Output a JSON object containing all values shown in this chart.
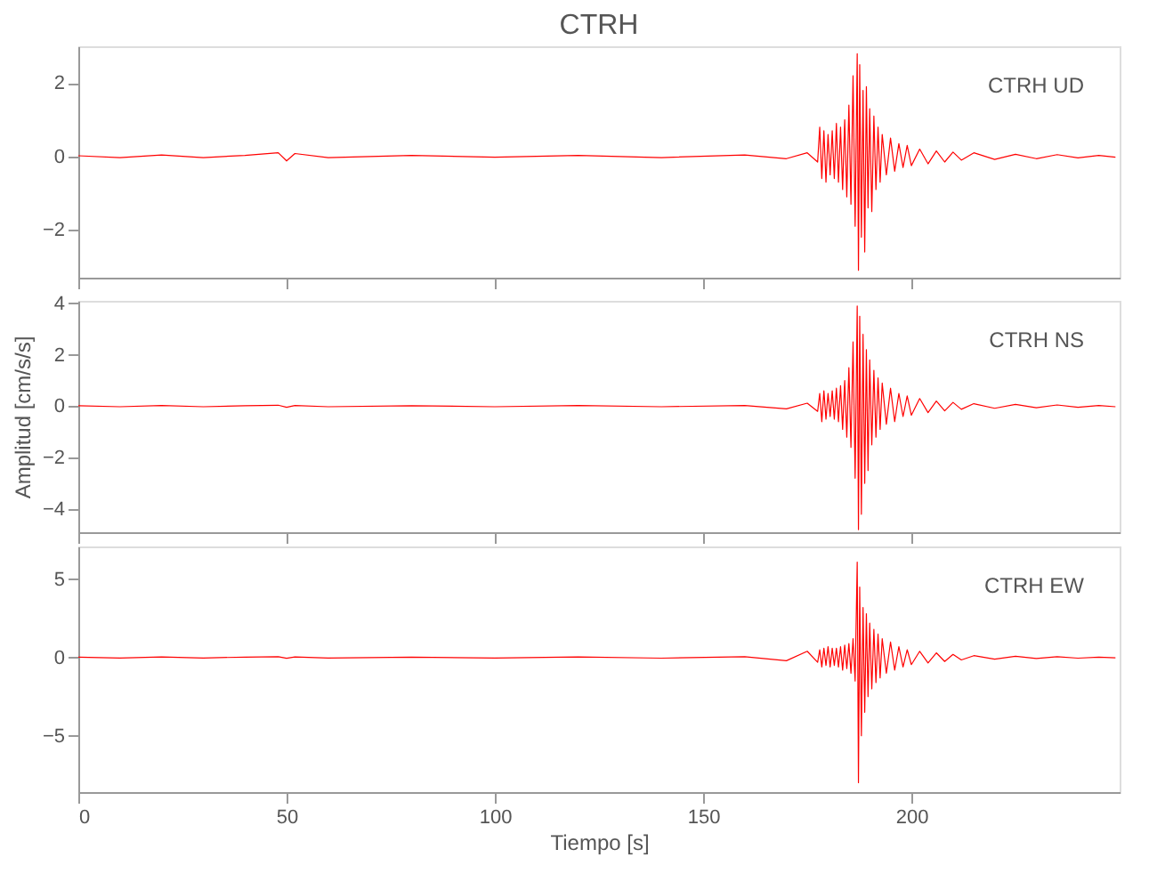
{
  "chart_data": [
    {
      "type": "line",
      "title": "CTRH",
      "annotations": [
        "CTRH UD"
      ],
      "xlim": [
        0,
        250
      ],
      "xticks": [
        0,
        50,
        100,
        150,
        200
      ],
      "ylim": [
        -3.3,
        3.0
      ],
      "yticks": [
        -2,
        0,
        2
      ],
      "tick_labels": "y",
      "grid": false,
      "series": [
        {
          "color": "#ff0000",
          "x": [
            0,
            10,
            20,
            30,
            40,
            48,
            50,
            52,
            60,
            80,
            100,
            120,
            140,
            160,
            170,
            175,
            177.5,
            178,
            178.5,
            179,
            179.5,
            180,
            180.5,
            181,
            181.5,
            182,
            182.5,
            183,
            183.5,
            184,
            184.5,
            185,
            185.5,
            186,
            186.5,
            187,
            187.3,
            187.6,
            188,
            188.4,
            188.8,
            189.2,
            189.6,
            190,
            190.5,
            191,
            191.5,
            192,
            192.5,
            193,
            194,
            195,
            196,
            197,
            198,
            199,
            200,
            202,
            204,
            206,
            208,
            210,
            212,
            215,
            220,
            225,
            230,
            235,
            240,
            245,
            249
          ],
          "values": [
            0.02,
            -0.03,
            0.04,
            -0.03,
            0.03,
            0.1,
            -0.12,
            0.08,
            -0.03,
            0.03,
            -0.02,
            0.03,
            -0.03,
            0.04,
            -0.06,
            0.1,
            -0.15,
            0.8,
            -0.6,
            0.7,
            -0.7,
            0.6,
            -0.5,
            0.7,
            -0.6,
            0.9,
            -0.7,
            0.8,
            -0.9,
            1.0,
            -1.1,
            1.4,
            -1.3,
            2.2,
            -1.9,
            2.8,
            -3.1,
            2.5,
            -2.2,
            1.8,
            -2.6,
            1.9,
            -1.4,
            1.3,
            -1.5,
            1.1,
            -0.9,
            0.8,
            -0.7,
            0.6,
            -0.5,
            0.5,
            -0.4,
            0.35,
            -0.3,
            0.3,
            -0.25,
            0.2,
            -0.2,
            0.15,
            -0.15,
            0.12,
            -0.1,
            0.1,
            -0.08,
            0.06,
            -0.06,
            0.05,
            -0.04,
            0.03,
            -0.02
          ]
        }
      ]
    },
    {
      "type": "line",
      "ylabel": "Amplitud [cm/s/s]",
      "annotations": [
        "CTRH NS"
      ],
      "xlim": [
        0,
        250
      ],
      "xticks": [
        0,
        50,
        100,
        150,
        200
      ],
      "ylim": [
        -4.9,
        4.1
      ],
      "yticks": [
        -4,
        -2,
        0,
        2,
        4
      ],
      "tick_labels": "y",
      "grid": false,
      "series": [
        {
          "color": "#ff0000",
          "x": [
            0,
            10,
            20,
            30,
            40,
            48,
            50,
            52,
            60,
            80,
            100,
            120,
            140,
            160,
            170,
            175,
            177.5,
            178,
            178.5,
            179,
            179.5,
            180,
            180.5,
            181,
            181.5,
            182,
            182.5,
            183,
            183.5,
            184,
            184.5,
            185,
            185.5,
            186,
            186.5,
            187,
            187.3,
            187.6,
            188,
            188.4,
            188.8,
            189.2,
            189.6,
            190,
            190.5,
            191,
            191.5,
            192,
            192.5,
            193,
            194,
            195,
            196,
            197,
            198,
            199,
            200,
            202,
            204,
            206,
            208,
            210,
            212,
            215,
            220,
            225,
            230,
            235,
            240,
            245,
            249
          ],
          "values": [
            0.02,
            -0.02,
            0.03,
            -0.02,
            0.02,
            0.04,
            -0.04,
            0.03,
            -0.02,
            0.02,
            -0.02,
            0.03,
            -0.02,
            0.03,
            -0.1,
            0.12,
            -0.2,
            0.5,
            -0.6,
            0.6,
            -0.5,
            0.5,
            -0.4,
            0.6,
            -0.5,
            0.7,
            -0.6,
            0.8,
            -0.9,
            1.0,
            -1.2,
            1.5,
            -1.6,
            2.5,
            -2.8,
            3.9,
            -4.8,
            3.5,
            -4.2,
            2.8,
            -3.0,
            2.2,
            -2.5,
            1.8,
            -1.5,
            1.4,
            -1.2,
            1.1,
            -0.9,
            0.9,
            -0.7,
            0.7,
            -0.6,
            0.5,
            -0.4,
            0.4,
            -0.35,
            0.3,
            -0.25,
            0.2,
            -0.18,
            0.15,
            -0.12,
            0.1,
            -0.08,
            0.07,
            -0.06,
            0.05,
            -0.04,
            0.03,
            -0.02
          ]
        }
      ]
    },
    {
      "type": "line",
      "xlabel": "Tiempo [s]",
      "annotations": [
        "CTRH EW"
      ],
      "xlim": [
        0,
        250
      ],
      "xticks": [
        0,
        50,
        100,
        150,
        200
      ],
      "ylim": [
        -8.6,
        7.1
      ],
      "yticks": [
        -5,
        0,
        5
      ],
      "grid": false,
      "series": [
        {
          "color": "#ff0000",
          "x": [
            0,
            10,
            20,
            30,
            40,
            48,
            50,
            52,
            60,
            80,
            100,
            120,
            140,
            160,
            170,
            175,
            177.5,
            178,
            178.5,
            179,
            179.5,
            180,
            180.5,
            181,
            181.5,
            182,
            182.5,
            183,
            183.5,
            184,
            184.5,
            185,
            185.5,
            186,
            186.5,
            187,
            187.3,
            187.6,
            188,
            188.4,
            188.8,
            189.2,
            189.6,
            190,
            190.5,
            191,
            191.5,
            192,
            192.5,
            193,
            194,
            195,
            196,
            197,
            198,
            199,
            200,
            202,
            204,
            206,
            208,
            210,
            212,
            215,
            220,
            225,
            230,
            235,
            240,
            245,
            249
          ],
          "values": [
            0.03,
            -0.03,
            0.04,
            -0.03,
            0.03,
            0.05,
            -0.05,
            0.04,
            -0.03,
            0.03,
            -0.03,
            0.04,
            -0.04,
            0.05,
            -0.2,
            0.4,
            -0.3,
            0.5,
            -0.6,
            0.6,
            -0.5,
            0.7,
            -0.6,
            0.6,
            -0.5,
            0.6,
            -0.6,
            0.7,
            -0.8,
            0.8,
            -0.7,
            0.9,
            -1.0,
            1.2,
            -1.5,
            6.1,
            -8.0,
            4.5,
            -5.0,
            3.2,
            -3.5,
            2.8,
            -2.5,
            2.2,
            -2.0,
            1.8,
            -1.6,
            1.5,
            -1.3,
            1.2,
            -1.0,
            1.0,
            -0.8,
            0.7,
            -0.6,
            0.5,
            -0.45,
            0.4,
            -0.35,
            0.3,
            -0.25,
            0.2,
            -0.15,
            0.12,
            -0.1,
            0.08,
            -0.06,
            0.05,
            -0.04,
            0.03,
            -0.02
          ]
        }
      ]
    }
  ]
}
